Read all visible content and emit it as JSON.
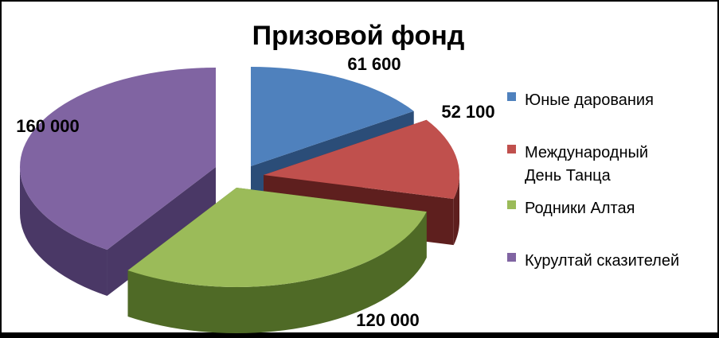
{
  "chart_data": {
    "type": "pie",
    "title": "Призовой фонд",
    "legend_position": "right",
    "categories": [
      "Юные дарования",
      "Международный День Танца",
      "Родники Алтая",
      "Курултай сказителей"
    ],
    "legend_lines": [
      [
        "Юные дарования"
      ],
      [
        "Международный",
        "День Танца"
      ],
      [
        "Родники Алтая"
      ],
      [
        "Курултай сказителей"
      ]
    ],
    "values": [
      61600,
      52100,
      120000,
      160000
    ],
    "labels": [
      "61 600",
      "52 100",
      "120 000",
      "160 000"
    ],
    "colors": [
      "#4F81BD",
      "#C0504D",
      "#9BBB59",
      "#8064A2"
    ],
    "side_colors": [
      "#2B4D78",
      "#5E1F1E",
      "#4F6A26",
      "#4A3866"
    ],
    "exploded": true,
    "three_d": true
  }
}
